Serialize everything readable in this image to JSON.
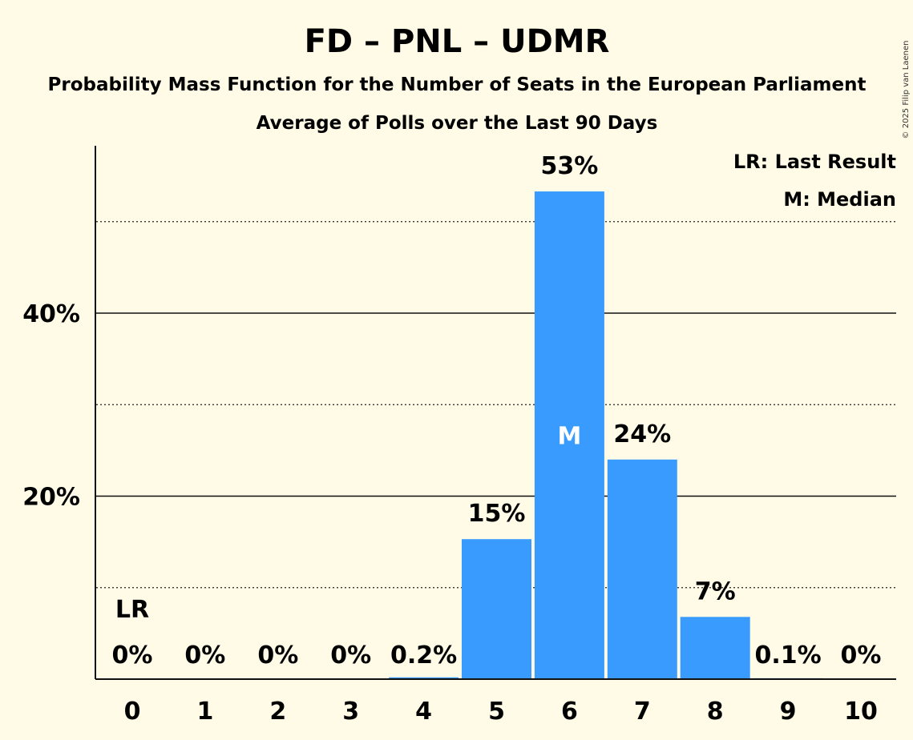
{
  "chart_data": {
    "type": "bar",
    "title": "FD – PNL – UDMR",
    "subtitle_1": "Probability Mass Function for the Number of Seats in the European Parliament",
    "subtitle_2": "Average of Polls over the Last 90 Days",
    "copyright": "© 2025 Filip van Laenen",
    "legend": {
      "placement": "top-right",
      "entries": [
        "LR: Last Result",
        "M: Median"
      ]
    },
    "categories": [
      "0",
      "1",
      "2",
      "3",
      "4",
      "5",
      "6",
      "7",
      "8",
      "9",
      "10"
    ],
    "values": [
      0,
      0,
      0,
      0,
      0.2,
      15.3,
      53.3,
      24.0,
      6.8,
      0.1,
      0
    ],
    "value_labels": [
      "0%",
      "0%",
      "0%",
      "0%",
      "0.2%",
      "15%",
      "53%",
      "24%",
      "7%",
      "0.1%",
      "0%"
    ],
    "ylim": [
      0,
      58
    ],
    "yticks": [
      {
        "value": 20,
        "label": "20%"
      },
      {
        "value": 40,
        "label": "40%"
      }
    ],
    "dotted_gridlines": [
      10,
      30,
      50
    ],
    "median_category": "6",
    "median_marker": "M",
    "last_result_category": "0",
    "last_result_marker": "LR",
    "bar_color": "#3a9bff",
    "background_color": "#fffbe6"
  }
}
